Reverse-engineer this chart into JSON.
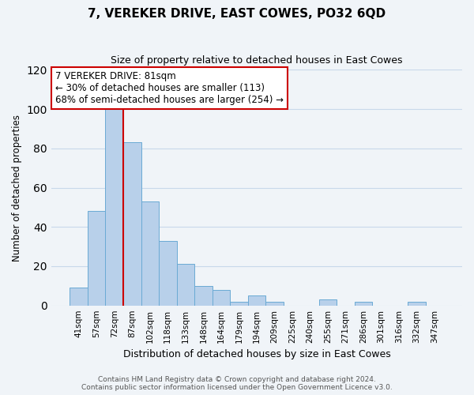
{
  "title": "7, VEREKER DRIVE, EAST COWES, PO32 6QD",
  "subtitle": "Size of property relative to detached houses in East Cowes",
  "xlabel": "Distribution of detached houses by size in East Cowes",
  "ylabel": "Number of detached properties",
  "bar_labels": [
    "41sqm",
    "57sqm",
    "72sqm",
    "87sqm",
    "102sqm",
    "118sqm",
    "133sqm",
    "148sqm",
    "164sqm",
    "179sqm",
    "194sqm",
    "209sqm",
    "225sqm",
    "240sqm",
    "255sqm",
    "271sqm",
    "286sqm",
    "301sqm",
    "316sqm",
    "332sqm",
    "347sqm"
  ],
  "bar_values": [
    9,
    48,
    100,
    83,
    53,
    33,
    21,
    10,
    8,
    2,
    5,
    2,
    0,
    0,
    3,
    0,
    2,
    0,
    0,
    2,
    0
  ],
  "bar_color": "#b8d0ea",
  "bar_edge_color": "#6aaad4",
  "vline_color": "#cc0000",
  "annotation_text": "7 VEREKER DRIVE: 81sqm\n← 30% of detached houses are smaller (113)\n68% of semi-detached houses are larger (254) →",
  "annotation_box_color": "white",
  "annotation_box_edge": "#cc0000",
  "ylim": [
    0,
    120
  ],
  "yticks": [
    0,
    20,
    40,
    60,
    80,
    100,
    120
  ],
  "footnote": "Contains HM Land Registry data © Crown copyright and database right 2024.\nContains public sector information licensed under the Open Government Licence v3.0.",
  "bg_color": "#f0f4f8",
  "grid_color": "#c8d8ea"
}
